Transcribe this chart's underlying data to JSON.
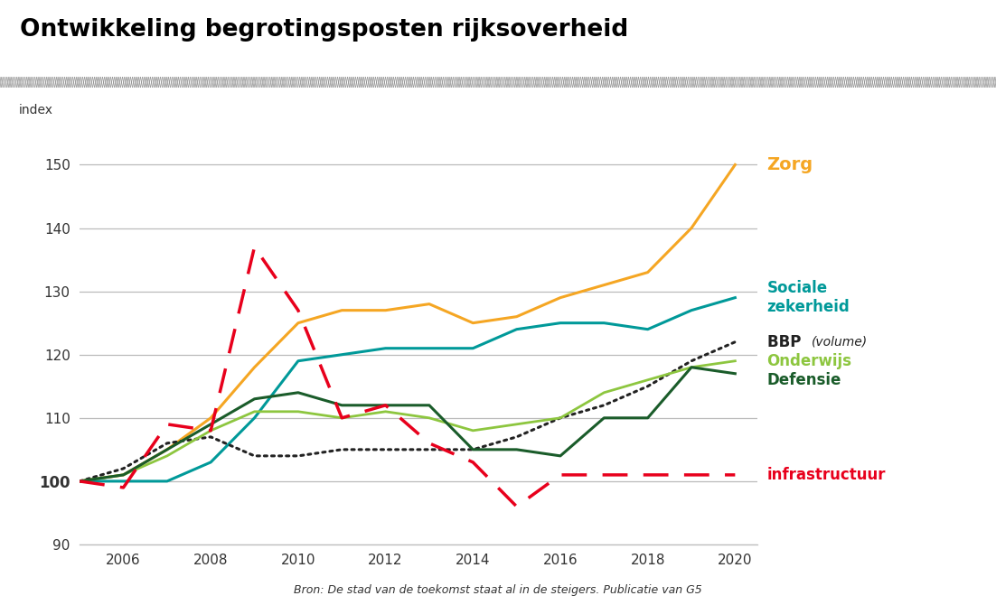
{
  "title": "Ontwikkeling begrotingsposten rijksoverheid",
  "ylabel": "index",
  "source": "Bron: De stad van de toekomst staat al in de steigers. Publicatie van G5",
  "years": [
    2005,
    2006,
    2007,
    2008,
    2009,
    2010,
    2011,
    2012,
    2013,
    2014,
    2015,
    2016,
    2017,
    2018,
    2019,
    2020
  ],
  "xlim": [
    2005.0,
    2020.5
  ],
  "ylim": [
    90,
    155
  ],
  "yticks": [
    90,
    100,
    110,
    120,
    130,
    140,
    150
  ],
  "xticks": [
    2006,
    2008,
    2010,
    2012,
    2014,
    2016,
    2018,
    2020
  ],
  "series": {
    "Zorg": {
      "color": "#F5A623",
      "linestyle": "solid",
      "linewidth": 2.2,
      "values": [
        100,
        101,
        105,
        110,
        118,
        125,
        127,
        127,
        128,
        125,
        126,
        129,
        131,
        133,
        140,
        150
      ]
    },
    "Sociale zekerheid": {
      "color": "#009999",
      "linestyle": "solid",
      "linewidth": 2.2,
      "values": [
        100,
        100,
        100,
        103,
        110,
        119,
        120,
        121,
        121,
        121,
        124,
        125,
        125,
        124,
        127,
        129
      ]
    },
    "BBP (volume)": {
      "color": "#222222",
      "linestyle": "dotted",
      "linewidth": 2.2,
      "values": [
        100,
        102,
        106,
        107,
        104,
        104,
        105,
        105,
        105,
        105,
        107,
        110,
        112,
        115,
        119,
        122
      ]
    },
    "Onderwijs": {
      "color": "#8DC63F",
      "linestyle": "solid",
      "linewidth": 2.0,
      "values": [
        100,
        101,
        104,
        108,
        111,
        111,
        110,
        111,
        110,
        108,
        109,
        110,
        114,
        116,
        118,
        119
      ]
    },
    "Defensie": {
      "color": "#1A5C2A",
      "linestyle": "solid",
      "linewidth": 2.2,
      "values": [
        100,
        101,
        105,
        109,
        113,
        114,
        112,
        112,
        112,
        105,
        105,
        104,
        110,
        110,
        118,
        117
      ]
    },
    "infrastructuur": {
      "color": "#E8001C",
      "linestyle": "dashed",
      "linewidth": 2.5,
      "values": [
        100,
        99,
        109,
        108,
        137,
        127,
        110,
        112,
        106,
        103,
        96,
        101,
        101,
        101,
        101,
        101
      ]
    }
  },
  "labels": {
    "Zorg": {
      "y": 150,
      "color": "#F5A623",
      "fontsize": 14,
      "bold": true,
      "text": "Zorg",
      "two_line": false
    },
    "Sociale zekerheid": {
      "y": 129,
      "color": "#009999",
      "fontsize": 12,
      "bold": true,
      "text": "Sociale\nzekerheid",
      "two_line": true
    },
    "BBP (volume)": {
      "y": 122,
      "color": "#222222",
      "fontsize": 12,
      "bold": true,
      "text": "BBP",
      "italic_suffix": " (volume)",
      "two_line": false
    },
    "Onderwijs": {
      "y": 119,
      "color": "#8DC63F",
      "fontsize": 12,
      "bold": true,
      "text": "Onderwijs",
      "two_line": false
    },
    "Defensie": {
      "y": 116,
      "color": "#1A5C2A",
      "fontsize": 12,
      "bold": true,
      "text": "Defensie",
      "two_line": false
    },
    "infrastructuur": {
      "y": 101,
      "color": "#E8001C",
      "fontsize": 12,
      "bold": true,
      "text": "infrastructuur",
      "two_line": false
    }
  },
  "background_color": "#FFFFFF",
  "grid_color": "#BBBBBB"
}
